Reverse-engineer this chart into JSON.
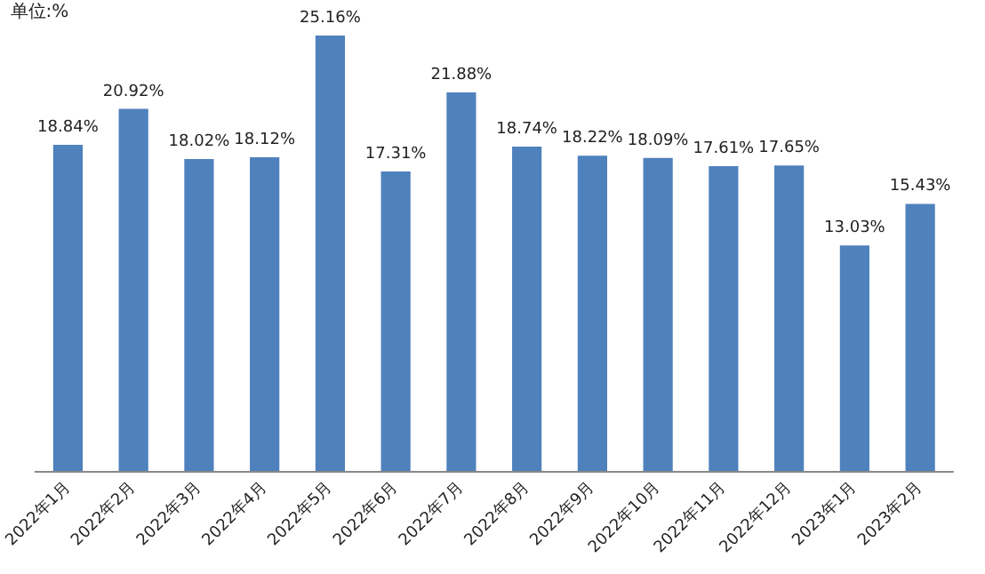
{
  "chart_data": {
    "type": "bar",
    "ylabel": "单位:%",
    "categories": [
      "2022年1月",
      "2022年2月",
      "2022年3月",
      "2022年4月",
      "2022年5月",
      "2022年6月",
      "2022年7月",
      "2022年8月",
      "2022年9月",
      "2022年10月",
      "2022年11月",
      "2022年12月",
      "2023年1月",
      "2023年2月"
    ],
    "values": [
      18.84,
      20.92,
      18.02,
      18.12,
      25.16,
      17.31,
      21.88,
      18.74,
      18.22,
      18.09,
      17.61,
      17.65,
      13.03,
      15.43
    ],
    "value_labels": [
      "18.84%",
      "20.92%",
      "18.02%",
      "18.12%",
      "25.16%",
      "17.31%",
      "21.88%",
      "18.74%",
      "18.22%",
      "18.09%",
      "17.61%",
      "17.65%",
      "13.03%",
      "15.43%"
    ],
    "color": "#4f81bd"
  }
}
